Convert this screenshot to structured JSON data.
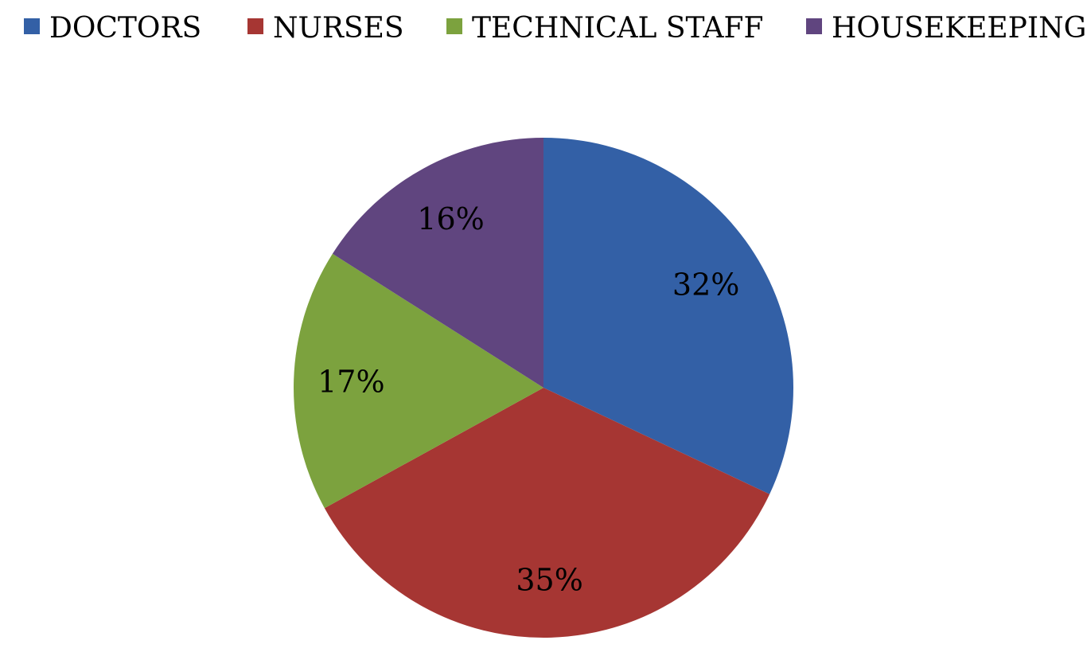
{
  "chart_data": {
    "type": "pie",
    "title": "",
    "legend_position": "top",
    "categories": [
      "DOCTORS",
      "NURSES",
      "TECHNICAL STAFF",
      "HOUSEKEEPING"
    ],
    "values": [
      32,
      35,
      17,
      16
    ],
    "labels": [
      "32%",
      "35%",
      "17%",
      "16%"
    ],
    "colors": [
      "#3360a6",
      "#a63633",
      "#7ca23e",
      "#60457f"
    ]
  }
}
